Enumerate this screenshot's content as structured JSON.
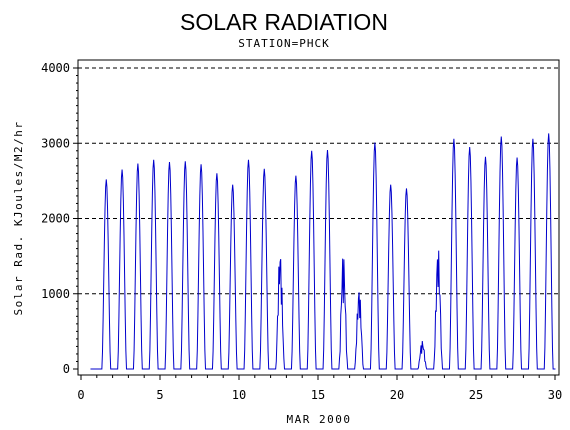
{
  "chart_data": {
    "type": "line",
    "title": "SOLAR RADIATION",
    "subtitle": "STATION=PHCK",
    "xlabel": "MAR 2000",
    "ylabel": "Solar Rad. KJoules/M2/hr",
    "xlim": [
      0,
      30
    ],
    "ylim": [
      0,
      4000
    ],
    "x_ticks": [
      0,
      5,
      10,
      15,
      20,
      25,
      30
    ],
    "x_tick_labels": [
      "0",
      "5",
      "10",
      "15",
      "20",
      "25",
      "30"
    ],
    "y_ticks": [
      0,
      1000,
      2000,
      3000,
      4000
    ],
    "y_tick_labels": [
      "0",
      "1000",
      "2000",
      "3000",
      "4000"
    ],
    "grid": "horizontal-dashed",
    "line_color": "#0000cc",
    "series": [
      {
        "daily_peaks": [
          {
            "x": 1.6,
            "y": 2520
          },
          {
            "x": 2.6,
            "y": 2650
          },
          {
            "x": 3.6,
            "y": 2730
          },
          {
            "x": 4.6,
            "y": 2780
          },
          {
            "x": 5.6,
            "y": 2750
          },
          {
            "x": 6.6,
            "y": 2760
          },
          {
            "x": 7.6,
            "y": 2720
          },
          {
            "x": 8.6,
            "y": 2600
          },
          {
            "x": 9.6,
            "y": 2450
          },
          {
            "x": 10.6,
            "y": 2780
          },
          {
            "x": 11.6,
            "y": 2660
          },
          {
            "x": 12.6,
            "y": 1610
          },
          {
            "x": 13.6,
            "y": 2570
          },
          {
            "x": 14.6,
            "y": 2900
          },
          {
            "x": 15.6,
            "y": 2910
          },
          {
            "x": 16.6,
            "y": 1560
          },
          {
            "x": 17.6,
            "y": 1090
          },
          {
            "x": 18.6,
            "y": 3010
          },
          {
            "x": 19.6,
            "y": 2450
          },
          {
            "x": 20.6,
            "y": 2400
          },
          {
            "x": 21.6,
            "y": 380
          },
          {
            "x": 22.6,
            "y": 1640
          },
          {
            "x": 23.6,
            "y": 3060
          },
          {
            "x": 24.6,
            "y": 2950
          },
          {
            "x": 25.6,
            "y": 2820
          },
          {
            "x": 26.6,
            "y": 3090
          },
          {
            "x": 27.6,
            "y": 2810
          },
          {
            "x": 28.6,
            "y": 3060
          },
          {
            "x": 29.6,
            "y": 3130
          }
        ]
      }
    ]
  }
}
